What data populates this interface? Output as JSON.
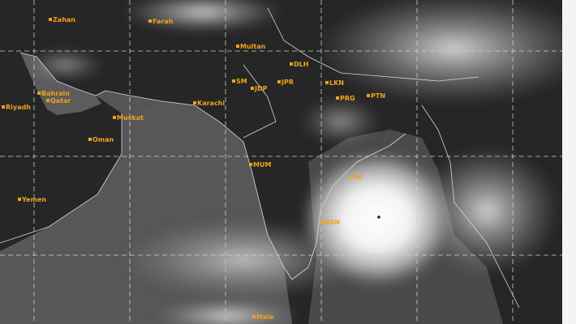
{
  "map": {
    "type": "satellite-infrared",
    "accent_label_color": "#f0a21c",
    "labels": [
      {
        "id": "zahedan",
        "text": "Zahan"
      },
      {
        "id": "farah",
        "text": "Farah"
      },
      {
        "id": "multan",
        "text": "Multan"
      },
      {
        "id": "karachi",
        "text": "Karachi"
      },
      {
        "id": "muskat",
        "text": "Muskat"
      },
      {
        "id": "oman",
        "text": "Oman"
      },
      {
        "id": "riyadh",
        "text": "Riyadh"
      },
      {
        "id": "bahrain",
        "text": "Bahrain"
      },
      {
        "id": "qatar",
        "text": "Qatar"
      },
      {
        "id": "yemen",
        "text": "Yemen"
      },
      {
        "id": "sm",
        "text": "SM"
      },
      {
        "id": "jdp",
        "text": "JDP"
      },
      {
        "id": "jpr",
        "text": "JPR"
      },
      {
        "id": "dlh",
        "text": "DLH"
      },
      {
        "id": "lkn",
        "text": "LKN"
      },
      {
        "id": "prg",
        "text": "PRG"
      },
      {
        "id": "ptn",
        "text": "PTN"
      },
      {
        "id": "mum",
        "text": "MUM"
      },
      {
        "id": "sk",
        "text": "SK"
      },
      {
        "id": "ngn",
        "text": "NGN"
      },
      {
        "id": "male",
        "text": "Male"
      }
    ],
    "feature": "cyclone-eye"
  }
}
